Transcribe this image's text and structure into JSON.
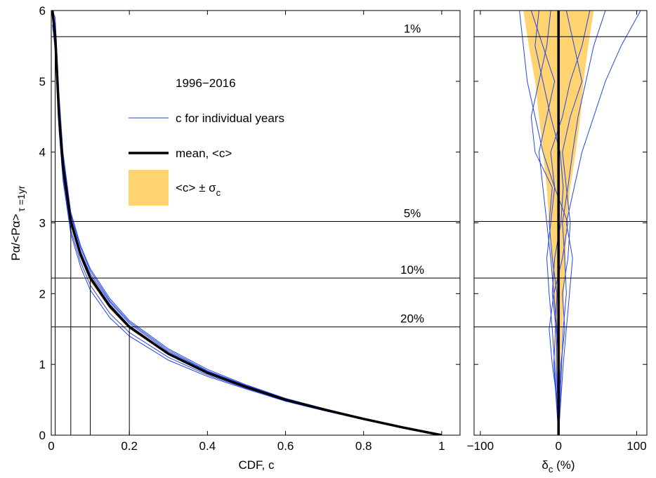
{
  "chart_data": [
    {
      "type": "line",
      "xlabel": "CDF, c",
      "ylabel": {
        "main": "Pα/<Pα>",
        "sub": "τ =1yr"
      },
      "xlim": [
        0,
        1.047
      ],
      "ylim": [
        0,
        6
      ],
      "xticks": [
        0,
        0.2,
        0.4,
        0.6,
        0.8,
        1
      ],
      "yticks": [
        0,
        1,
        2,
        3,
        4,
        5,
        6
      ],
      "legend_title": "1996−2016",
      "x": [
        0.003,
        0.01,
        0.02,
        0.03,
        0.05,
        0.075,
        0.1,
        0.15,
        0.2,
        0.3,
        0.4,
        0.5,
        0.6,
        0.7,
        0.8,
        0.9,
        1
      ],
      "series": [
        {
          "role": "band",
          "name": "<c> ± σ",
          "name_sub": "c",
          "color": "#ffd370",
          "low": [
            5.9,
            5.5,
            4.4,
            3.72,
            2.96,
            2.5,
            2.17,
            1.78,
            1.5,
            1.13,
            0.86,
            0.67,
            0.49,
            0.355,
            0.225,
            0.107,
            0
          ],
          "high": [
            6.0,
            5.76,
            4.6,
            3.88,
            3.08,
            2.6,
            2.27,
            1.86,
            1.56,
            1.17,
            0.9,
            0.69,
            0.51,
            0.365,
            0.235,
            0.113,
            0
          ]
        },
        {
          "role": "years",
          "name": "c for individual years",
          "color": "#2244ee",
          "curves": [
            [
              6.0,
              5.8,
              4.7,
              3.95,
              3.12,
              2.65,
              2.32,
              1.9,
              1.6,
              1.2,
              0.91,
              0.7,
              0.52,
              0.37,
              0.24,
              0.11,
              0
            ],
            [
              5.9,
              5.5,
              4.35,
              3.65,
              2.9,
              2.45,
              2.12,
              1.72,
              1.45,
              1.1,
              0.85,
              0.66,
              0.49,
              0.35,
              0.22,
              0.105,
              0
            ],
            [
              6.0,
              5.7,
              4.6,
              3.9,
              3.08,
              2.6,
              2.28,
              1.88,
              1.58,
              1.18,
              0.9,
              0.69,
              0.51,
              0.37,
              0.235,
              0.11,
              0
            ],
            [
              5.8,
              5.45,
              4.3,
              3.6,
              2.85,
              2.38,
              2.05,
              1.66,
              1.4,
              1.06,
              0.83,
              0.65,
              0.48,
              0.345,
              0.22,
              0.105,
              0
            ],
            [
              6.0,
              5.65,
              4.55,
              3.82,
              3.05,
              2.58,
              2.25,
              1.85,
              1.55,
              1.16,
              0.89,
              0.68,
              0.5,
              0.36,
              0.23,
              0.11,
              0
            ],
            [
              6.0,
              5.9,
              4.8,
              4.0,
              3.15,
              2.68,
              2.35,
              1.93,
              1.62,
              1.22,
              0.93,
              0.71,
              0.52,
              0.375,
              0.24,
              0.115,
              0
            ]
          ]
        },
        {
          "role": "mean",
          "name": "mean, <c>",
          "color": "#000000",
          "values": [
            6.0,
            5.63,
            4.5,
            3.8,
            3.02,
            2.55,
            2.22,
            1.82,
            1.53,
            1.15,
            0.88,
            0.68,
            0.5,
            0.36,
            0.23,
            0.11,
            0
          ]
        }
      ],
      "reference_lines": [
        {
          "c": 0.01,
          "level": 5.63,
          "label": "1%"
        },
        {
          "c": 0.05,
          "level": 3.02,
          "label": "5%"
        },
        {
          "c": 0.1,
          "level": 2.22,
          "label": "10%"
        },
        {
          "c": 0.2,
          "level": 1.53,
          "label": "20%"
        }
      ]
    },
    {
      "type": "line",
      "xlabel": {
        "main": "δ",
        "sub": "c",
        "tail": " (%)"
      },
      "xlim": [
        -108,
        113
      ],
      "ylim": [
        0,
        6
      ],
      "xticks": [
        {
          "value": -100,
          "label": "−100"
        },
        0,
        100
      ],
      "yticks": [
        0,
        1,
        2,
        3,
        4,
        5,
        6
      ],
      "ytick_labels": false,
      "y": [
        0,
        0.5,
        1,
        1.5,
        2,
        2.5,
        3,
        3.5,
        4,
        4.5,
        5,
        5.5,
        6
      ],
      "band": {
        "color": "#ffd370",
        "low": [
          0,
          -1.5,
          -3,
          -5,
          -7,
          -9,
          -12,
          -15,
          -20,
          -25,
          -30,
          -38,
          -45
        ],
        "high": [
          0,
          1.5,
          3,
          5,
          7,
          9,
          11,
          15,
          22,
          28,
          32,
          38,
          45
        ]
      },
      "years": {
        "color": "#2244ee",
        "curves": [
          [
            0,
            -2,
            -5,
            -8,
            -12,
            -15,
            -10,
            -5,
            -20,
            -30,
            -40,
            -45,
            -50
          ],
          [
            0,
            2,
            4,
            6,
            10,
            8,
            5,
            12,
            18,
            25,
            35,
            45,
            60
          ],
          [
            0,
            -1,
            -3,
            -2,
            -6,
            -10,
            -15,
            -20,
            -25,
            -15,
            -5,
            -20,
            -35
          ],
          [
            0,
            1,
            3,
            8,
            5,
            12,
            15,
            10,
            5,
            15,
            30,
            20,
            10
          ],
          [
            0,
            -3,
            -6,
            -4,
            -2,
            -8,
            -12,
            -8,
            -30,
            -35,
            -25,
            -15,
            -10
          ],
          [
            0,
            2,
            1,
            -3,
            -8,
            -5,
            3,
            6,
            2,
            -10,
            -20,
            -30,
            -25
          ],
          [
            0,
            3,
            6,
            10,
            14,
            18,
            10,
            20,
            30,
            45,
            60,
            80,
            105
          ],
          [
            0,
            -2,
            -8,
            -12,
            -6,
            5,
            12,
            -5,
            -10,
            5,
            15,
            30,
            40
          ]
        ]
      },
      "mean": {
        "color": "#000000",
        "values": [
          0,
          0,
          0,
          0,
          0,
          0,
          0,
          0,
          0,
          0,
          0,
          0,
          0
        ]
      }
    }
  ]
}
